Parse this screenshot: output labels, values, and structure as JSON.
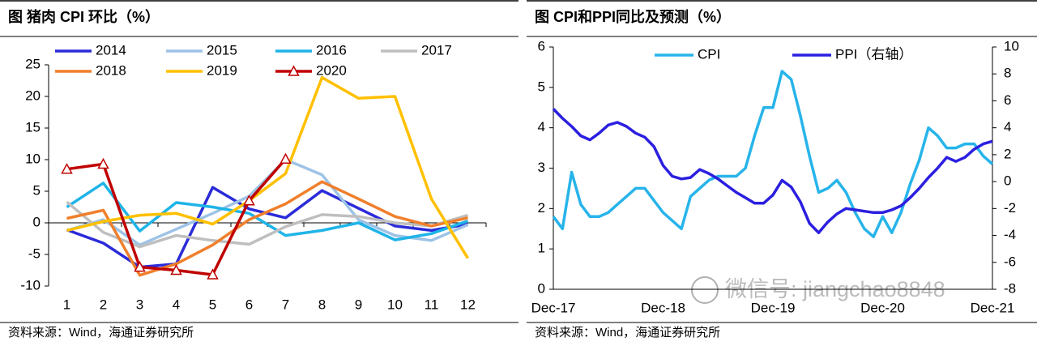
{
  "chart_data": [
    {
      "type": "line",
      "title": "图  猪肉 CPI 环比（%）",
      "categories": [
        "1",
        "2",
        "3",
        "4",
        "5",
        "6",
        "7",
        "8",
        "9",
        "10",
        "11",
        "12"
      ],
      "ylim": [
        -10,
        25
      ],
      "yticks": [
        -10,
        -5,
        0,
        5,
        10,
        15,
        20,
        25
      ],
      "legend": "top",
      "series": [
        {
          "name": "2014",
          "color": "#2b2bd9",
          "values": [
            -1.1,
            -3.2,
            -7.0,
            -6.5,
            5.6,
            2.2,
            0.8,
            5.1,
            2.3,
            -0.5,
            -1.2,
            -0.2
          ]
        },
        {
          "name": "2015",
          "color": "#9dc3e6",
          "values": [
            -1.2,
            0.5,
            -3.5,
            -1.0,
            1.5,
            4.2,
            10.0,
            7.6,
            0.5,
            -2.0,
            -2.8,
            -0.3
          ]
        },
        {
          "name": "2016",
          "color": "#1fb4e8",
          "values": [
            2.5,
            6.3,
            -1.3,
            3.2,
            2.5,
            1.5,
            -2.0,
            -1.2,
            0.0,
            -2.7,
            -1.7,
            0.3
          ]
        },
        {
          "name": "2017",
          "color": "#bfbfbf",
          "values": [
            3.3,
            -1.5,
            -3.8,
            -2.0,
            -2.8,
            -3.4,
            -0.6,
            1.3,
            1.0,
            0.0,
            -0.5,
            1.2
          ]
        },
        {
          "name": "2018",
          "color": "#f07f2c",
          "values": [
            0.7,
            2.0,
            -8.3,
            -6.5,
            -3.5,
            0.5,
            3.0,
            6.5,
            3.8,
            1.0,
            -0.5,
            0.8
          ]
        },
        {
          "name": "2019",
          "color": "#ffc000",
          "values": [
            -1.2,
            0.2,
            1.2,
            1.5,
            -0.2,
            3.5,
            7.8,
            23.0,
            19.7,
            20.0,
            3.8,
            -5.6
          ]
        },
        {
          "name": "2020",
          "color": "#c00000",
          "marker": "triangle",
          "values": [
            8.5,
            9.3,
            -7.0,
            -7.5,
            -8.2,
            3.5,
            10.1,
            null,
            null,
            null,
            null,
            null
          ]
        }
      ],
      "source": "资料来源：Wind，海通证券研究所"
    },
    {
      "type": "line",
      "title": "图  CPI和PPI同比及预测（%）",
      "categories": [
        "Dec-17",
        null,
        null,
        null,
        null,
        null,
        null,
        null,
        null,
        null,
        null,
        null,
        "Dec-18",
        null,
        null,
        null,
        null,
        null,
        null,
        null,
        null,
        null,
        null,
        null,
        "Dec-19",
        null,
        null,
        null,
        null,
        null,
        null,
        null,
        null,
        null,
        null,
        null,
        "Dec-20",
        null,
        null,
        null,
        null,
        null,
        null,
        null,
        null,
        null,
        null,
        null,
        "Dec-21"
      ],
      "ylim": [
        0,
        6
      ],
      "yticks": [
        0,
        1,
        2,
        3,
        4,
        5,
        6
      ],
      "y2lim": [
        -8,
        10
      ],
      "y2ticks": [
        -8,
        -6,
        -4,
        -2,
        0,
        2,
        4,
        6,
        8,
        10
      ],
      "legend": "top",
      "series": [
        {
          "name": "CPI",
          "color": "#27b4ea",
          "values": [
            1.8,
            1.5,
            2.9,
            2.1,
            1.8,
            1.8,
            1.9,
            2.1,
            2.3,
            2.5,
            2.5,
            2.2,
            1.9,
            1.7,
            1.5,
            2.3,
            2.5,
            2.7,
            2.8,
            2.8,
            2.8,
            3.0,
            3.8,
            4.5,
            4.5,
            5.4,
            5.2,
            4.3,
            3.3,
            2.4,
            2.5,
            2.7,
            2.4,
            1.9,
            1.5,
            1.3,
            1.8,
            1.4,
            1.9,
            2.6,
            3.2,
            4.0,
            3.8,
            3.5,
            3.5,
            3.6,
            3.6,
            3.3,
            3.1
          ]
        },
        {
          "name": "PPI（右轴）",
          "color": "#2b1fe0",
          "axis": "y2",
          "values": [
            5.4,
            4.7,
            4.1,
            3.4,
            3.1,
            3.6,
            4.2,
            4.4,
            4.1,
            3.6,
            3.3,
            2.6,
            1.2,
            0.4,
            0.2,
            0.3,
            0.9,
            0.6,
            0.2,
            -0.3,
            -0.8,
            -1.2,
            -1.6,
            -1.6,
            -1.0,
            0.1,
            -0.4,
            -1.5,
            -3.1,
            -3.8,
            -3.0,
            -2.4,
            -2.0,
            -2.1,
            -2.2,
            -2.3,
            -2.3,
            -2.1,
            -1.8,
            -1.2,
            -0.5,
            0.3,
            1.0,
            1.8,
            1.5,
            1.8,
            2.4,
            2.8,
            3.0
          ]
        }
      ],
      "source": "资料来源：Wind，海通证券研究所",
      "watermark": "微信号: jiangchao8848"
    }
  ]
}
